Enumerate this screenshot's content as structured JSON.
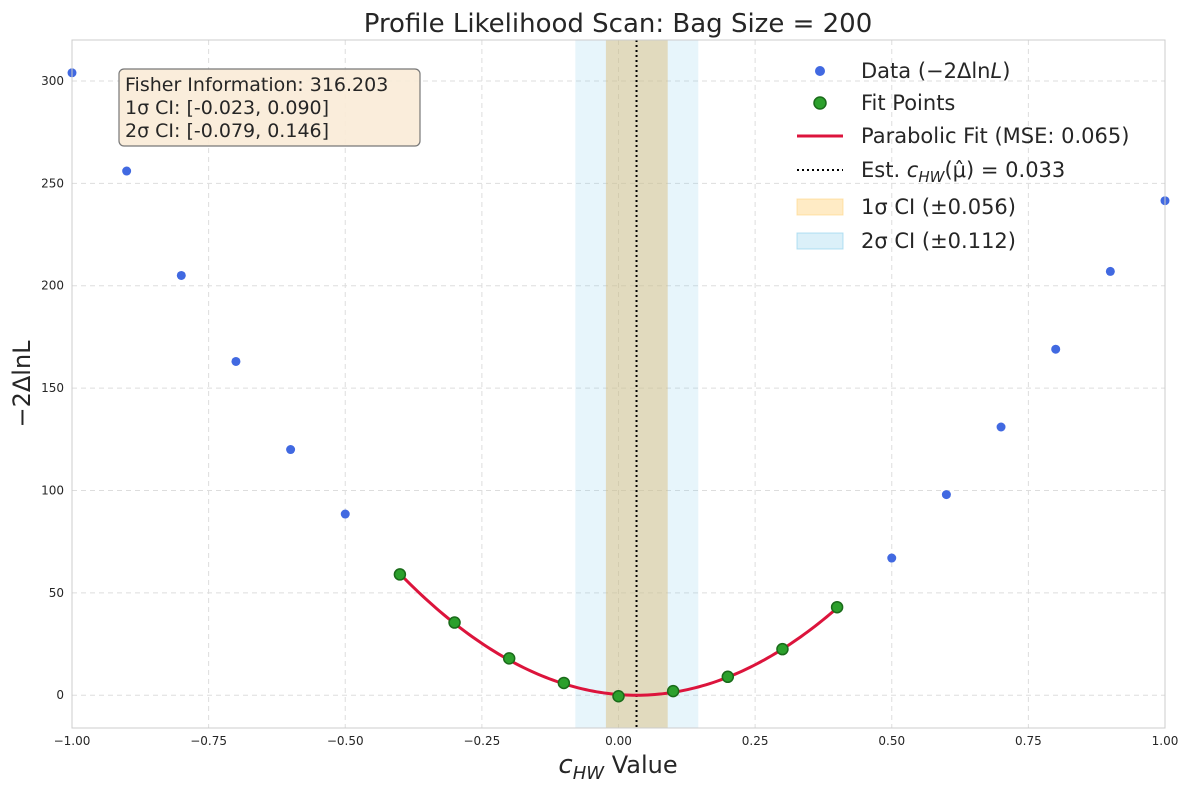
{
  "chart_data": {
    "type": "scatter",
    "title": "Profile Likelihood Scan: Bag Size = 200",
    "xlabel": "Value",
    "xlabel_math": {
      "base": "c",
      "sub": "HW"
    },
    "ylabel": "−2ΔlnL",
    "xlim": [
      -1.0,
      1.0
    ],
    "ylim": [
      -16,
      320
    ],
    "xticks": [
      -1.0,
      -0.75,
      -0.5,
      -0.25,
      0.0,
      0.25,
      0.5,
      0.75,
      1.0
    ],
    "xtick_labels": [
      "−1.00",
      "−0.75",
      "−0.50",
      "−0.25",
      "0.00",
      "0.25",
      "0.50",
      "0.75",
      "1.00"
    ],
    "yticks": [
      0,
      50,
      100,
      150,
      200,
      250,
      300
    ],
    "ytick_labels": [
      "0",
      "50",
      "100",
      "150",
      "200",
      "250",
      "300"
    ],
    "grid": true,
    "legend_position": "top-right",
    "series": [
      {
        "name": "Data (−2ΔlnL)",
        "kind": "scatter",
        "color": "#4169e1",
        "x": [
          -1.0,
          -0.9,
          -0.8,
          -0.7,
          -0.6,
          -0.5,
          0.5,
          0.6,
          0.7,
          0.8,
          0.9,
          1.0
        ],
        "y": [
          304,
          256,
          205,
          163,
          120,
          88.5,
          67,
          98,
          131,
          169,
          207,
          241.5
        ]
      },
      {
        "name": "Fit Points",
        "kind": "scatter",
        "color": "#2ca02c",
        "edge_color": "#1a6b1a",
        "x": [
          -0.4,
          -0.3,
          -0.2,
          -0.1,
          0.0,
          0.1,
          0.2,
          0.3,
          0.4
        ],
        "y": [
          59,
          35.5,
          18,
          6,
          -0.5,
          2,
          9,
          22.5,
          43
        ]
      },
      {
        "name": "Parabolic Fit (MSE: 0.065)",
        "kind": "line",
        "color": "#dc143c",
        "a": 316.203,
        "center": 0.033,
        "offset": 0,
        "x_range": [
          -0.4,
          0.4
        ]
      }
    ],
    "vline": {
      "name": "Est. ĉHW(μ̂) = 0.033",
      "x": 0.033,
      "color": "#000000",
      "style": "dotted"
    },
    "bands": [
      {
        "name": "1σ CI (±0.056)",
        "x0": -0.023,
        "x1": 0.09,
        "color": "#ffd27f",
        "opacity": 0.35
      },
      {
        "name": "2σ CI (±0.112)",
        "x0": -0.079,
        "x1": 0.146,
        "color": "#87ceeb",
        "opacity": 0.2
      }
    ],
    "legend": [
      {
        "marker": "dot",
        "color": "#4169e1",
        "label": "Data (−2ΔlnL)"
      },
      {
        "marker": "dot-edge",
        "color": "#2ca02c",
        "edge": "#1a6b1a",
        "label": "Fit Points"
      },
      {
        "marker": "line",
        "color": "#dc143c",
        "label": "Parabolic Fit (MSE: 0.065)"
      },
      {
        "marker": "dotted",
        "color": "#000000",
        "label": "Est. c_HW(μ̂) = 0.033"
      },
      {
        "marker": "patch",
        "color": "#ffd27f",
        "opacity": 0.45,
        "label": "1σ CI (±0.056)"
      },
      {
        "marker": "patch",
        "color": "#87ceeb",
        "opacity": 0.3,
        "label": "2σ CI (±0.112)"
      }
    ],
    "annotation": {
      "lines": [
        "Fisher Information: 316.203",
        "1σ CI: [-0.023, 0.090]",
        "2σ CI: [-0.079, 0.146]"
      ],
      "position": "top-left",
      "background": "#faebd7",
      "border": "#777777"
    }
  }
}
